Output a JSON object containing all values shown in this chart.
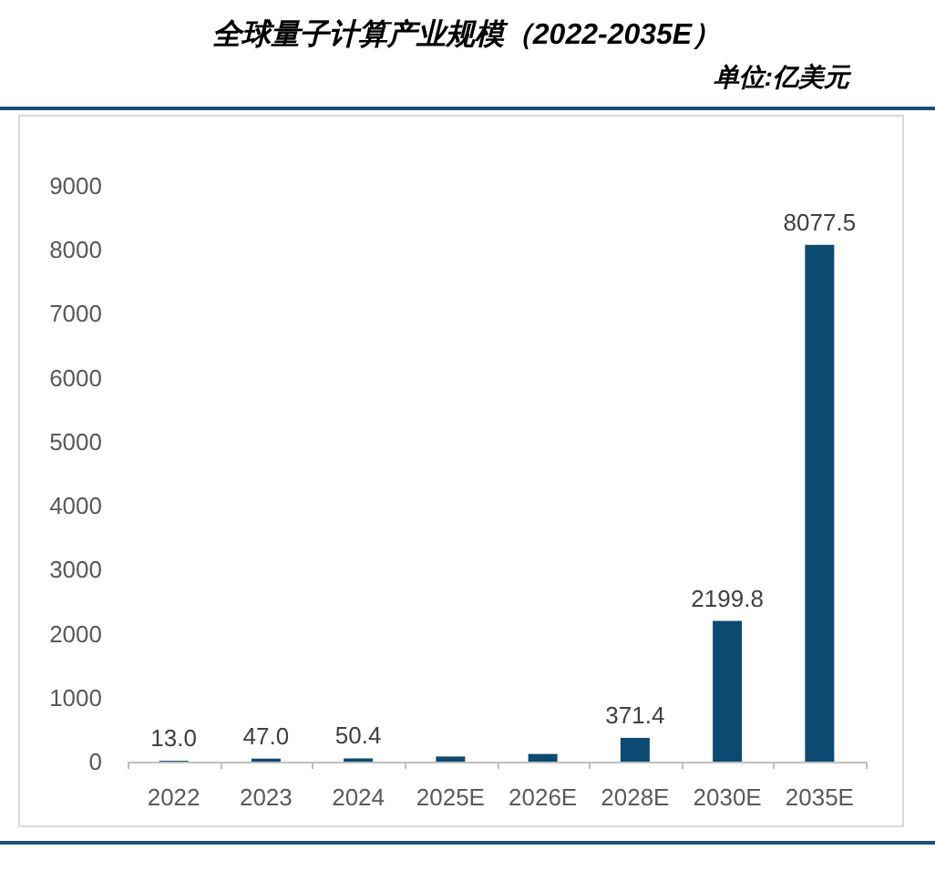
{
  "chart_data": {
    "type": "bar",
    "title": "全球量子计算产业规模（2022-2035E）",
    "subtitle": "单位:亿美元",
    "categories": [
      "2022",
      "2023",
      "2024",
      "2025E",
      "2026E",
      "2028E",
      "2030E",
      "2035E"
    ],
    "values": [
      13.0,
      47.0,
      50.4,
      80,
      120,
      371.4,
      2199.8,
      8077.5
    ],
    "value_labels": [
      "13.0",
      "47.0",
      "50.4",
      null,
      null,
      "371.4",
      "2199.8",
      "8077.5"
    ],
    "color": "#0d4a72",
    "ylim": [
      0,
      9000
    ],
    "yticks": [
      0,
      1000,
      2000,
      3000,
      4000,
      5000,
      6000,
      7000,
      8000,
      9000
    ]
  }
}
